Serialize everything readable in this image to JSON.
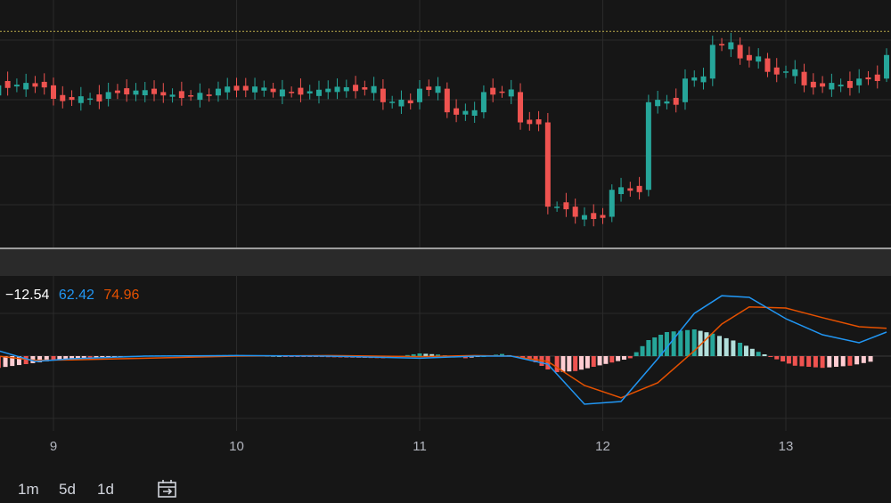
{
  "colors": {
    "background": "#161616",
    "grid": "#2a2a2a",
    "up": "#26a69a",
    "down": "#ef5350",
    "macd_line": "#2196f3",
    "signal_line": "#e65100",
    "hist_up_strong": "#26a69a",
    "hist_up_weak": "#b2dfdb",
    "hist_down_strong": "#ef5350",
    "hist_down_weak": "#ffcdd2",
    "price_line": "#b9a94a",
    "separator": "#9e9e9e"
  },
  "legend": {
    "hist": "−12.54",
    "macd": "62.42",
    "signal": "74.96"
  },
  "timeframes": [
    "1m",
    "5d",
    "1d"
  ],
  "icons": {
    "date_range": "calendar-arrow-icon"
  },
  "chart_data": [
    {
      "type": "candlestick",
      "x_axis": "day",
      "horizontal_line": "dotted price level near session high",
      "series": [
        {
          "x": 8.7,
          "o": 118,
          "c": 121,
          "h": 123,
          "l": 116
        },
        {
          "x": 9.0,
          "o": 121,
          "c": 117,
          "h": 122,
          "l": 115
        },
        {
          "x": 9.3,
          "o": 117,
          "c": 119,
          "h": 120,
          "l": 116
        },
        {
          "x": 9.6,
          "o": 119,
          "c": 118,
          "h": 120,
          "l": 117
        },
        {
          "x": 9.9,
          "o": 118,
          "c": 120,
          "h": 121,
          "l": 117
        },
        {
          "x": 10.2,
          "o": 120,
          "c": 119,
          "h": 121,
          "l": 118
        },
        {
          "x": 10.5,
          "o": 119,
          "c": 120,
          "h": 121,
          "l": 118
        },
        {
          "x": 10.8,
          "o": 120,
          "c": 116,
          "h": 121,
          "l": 113
        },
        {
          "x": 11.0,
          "o": 116,
          "c": 120,
          "h": 124,
          "l": 115
        },
        {
          "x": 11.15,
          "o": 120,
          "c": 113,
          "h": 121,
          "l": 111
        },
        {
          "x": 11.35,
          "o": 113,
          "c": 119,
          "h": 120,
          "l": 112
        },
        {
          "x": 11.55,
          "o": 119,
          "c": 110,
          "h": 120,
          "l": 108
        },
        {
          "x": 11.7,
          "o": 110,
          "c": 85,
          "h": 111,
          "l": 80
        },
        {
          "x": 11.85,
          "o": 85,
          "c": 82,
          "h": 90,
          "l": 78
        },
        {
          "x": 12.05,
          "o": 82,
          "c": 90,
          "h": 92,
          "l": 80
        },
        {
          "x": 12.25,
          "o": 90,
          "c": 116,
          "h": 118,
          "l": 88
        },
        {
          "x": 12.45,
          "o": 116,
          "c": 123,
          "h": 126,
          "l": 114
        },
        {
          "x": 12.6,
          "o": 123,
          "c": 133,
          "h": 137,
          "l": 121
        },
        {
          "x": 12.75,
          "o": 133,
          "c": 129,
          "h": 141,
          "l": 126
        },
        {
          "x": 12.9,
          "o": 129,
          "c": 125,
          "h": 131,
          "l": 122
        },
        {
          "x": 13.1,
          "o": 125,
          "c": 121,
          "h": 126,
          "l": 119
        },
        {
          "x": 13.4,
          "o": 121,
          "c": 123,
          "h": 124,
          "l": 119
        },
        {
          "x": 13.55,
          "o": 123,
          "c": 130,
          "h": 132,
          "l": 122
        }
      ]
    },
    {
      "type": "macd",
      "x_ticks": [
        "9",
        "10",
        "11",
        "12",
        "13"
      ],
      "x_tick_values": [
        9,
        10,
        11,
        12,
        13
      ],
      "macd": [
        [
          8.7,
          10
        ],
        [
          8.9,
          -10
        ],
        [
          9.1,
          -5
        ],
        [
          9.5,
          0
        ],
        [
          10.0,
          1
        ],
        [
          10.5,
          0
        ],
        [
          11.0,
          -4
        ],
        [
          11.3,
          0
        ],
        [
          11.5,
          0
        ],
        [
          11.7,
          -15
        ],
        [
          11.9,
          -90
        ],
        [
          12.1,
          -85
        ],
        [
          12.3,
          -5
        ],
        [
          12.5,
          80
        ],
        [
          12.65,
          113
        ],
        [
          12.8,
          110
        ],
        [
          13.0,
          70
        ],
        [
          13.2,
          40
        ],
        [
          13.4,
          25
        ],
        [
          13.55,
          45
        ]
      ],
      "signal": [
        [
          8.7,
          0
        ],
        [
          8.9,
          -8
        ],
        [
          9.1,
          -7
        ],
        [
          9.5,
          -4
        ],
        [
          10.0,
          0
        ],
        [
          10.5,
          1
        ],
        [
          11.0,
          -1
        ],
        [
          11.3,
          1
        ],
        [
          11.5,
          0
        ],
        [
          11.7,
          -10
        ],
        [
          11.9,
          -55
        ],
        [
          12.1,
          -78
        ],
        [
          12.3,
          -50
        ],
        [
          12.5,
          10
        ],
        [
          12.65,
          60
        ],
        [
          12.8,
          92
        ],
        [
          13.0,
          90
        ],
        [
          13.2,
          72
        ],
        [
          13.4,
          55
        ],
        [
          13.55,
          52
        ]
      ],
      "histogram": [
        [
          8.7,
          -22
        ],
        [
          8.85,
          -15
        ],
        [
          9.0,
          -8
        ],
        [
          9.2,
          -3
        ],
        [
          9.5,
          1
        ],
        [
          10.0,
          2
        ],
        [
          10.5,
          -2
        ],
        [
          10.8,
          -4
        ],
        [
          11.0,
          5
        ],
        [
          11.1,
          3
        ],
        [
          11.25,
          -4
        ],
        [
          11.45,
          4
        ],
        [
          11.6,
          -5
        ],
        [
          11.7,
          -25
        ],
        [
          11.75,
          -30
        ],
        [
          11.85,
          -28
        ],
        [
          11.95,
          -20
        ],
        [
          12.05,
          -12
        ],
        [
          12.15,
          -4
        ],
        [
          12.25,
          30
        ],
        [
          12.35,
          45
        ],
        [
          12.5,
          50
        ],
        [
          12.6,
          42
        ],
        [
          12.75,
          25
        ],
        [
          12.85,
          8
        ],
        [
          12.95,
          -6
        ],
        [
          13.05,
          -18
        ],
        [
          13.2,
          -22
        ],
        [
          13.35,
          -18
        ],
        [
          13.5,
          -8
        ]
      ]
    }
  ]
}
